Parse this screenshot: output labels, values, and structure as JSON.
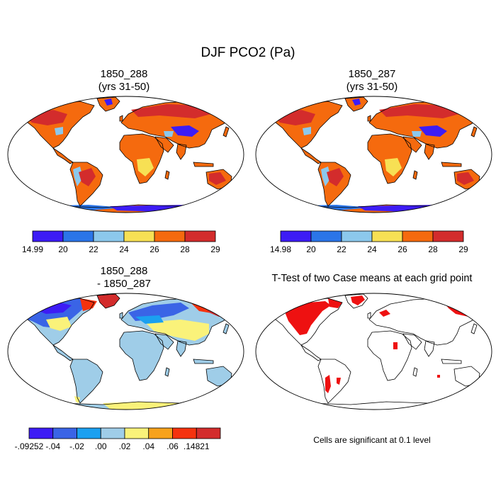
{
  "title": "DJF PCO2 (Pa)",
  "panels": [
    {
      "id": "p1",
      "title_line1": "1850_288",
      "title_line2": "(yrs 31-50)"
    },
    {
      "id": "p2",
      "title_line1": "1850_287",
      "title_line2": "(yrs 31-50)"
    },
    {
      "id": "p3",
      "title_line1": "1850_288",
      "title_line2": "- 1850_287"
    },
    {
      "id": "p4",
      "title_line1": "T-Test of two Case means at each grid point",
      "title_line2": ""
    }
  ],
  "note": "Cells are significant at 0.1 level",
  "colors": {
    "abs_scale": [
      "#3d1cf5",
      "#2b75e8",
      "#8cc8ec",
      "#f7e054",
      "#f56a0e",
      "#d32c2c"
    ],
    "diff_scale": [
      "#3d1cf5",
      "#3a64e6",
      "#1ba0f0",
      "#9fcde8",
      "#faf27a",
      "#f7a21c",
      "#f5320e",
      "#d32c2c"
    ],
    "significant": "#ee1111",
    "outline": "#000000"
  },
  "chart_data": [
    {
      "type": "heatmap",
      "title": "1850_288 (yrs 31-50)",
      "colorbar_labels": [
        "14.99",
        "20",
        "22",
        "24",
        "26",
        "28",
        "29"
      ],
      "colorbar_min": 14.99,
      "colorbar_max": 29,
      "levels": [
        20,
        22,
        24,
        26,
        28
      ]
    },
    {
      "type": "heatmap",
      "title": "1850_287 (yrs 31-50)",
      "colorbar_labels": [
        "14.98",
        "20",
        "22",
        "24",
        "26",
        "28",
        "29"
      ],
      "colorbar_min": 14.98,
      "colorbar_max": 29,
      "levels": [
        20,
        22,
        24,
        26,
        28
      ]
    },
    {
      "type": "heatmap",
      "title": "1850_288 - 1850_287",
      "colorbar_labels": [
        "-.09252",
        "-.04",
        "-.02",
        ".00",
        ".02",
        ".04",
        ".06",
        ".14821"
      ],
      "colorbar_min": -0.09252,
      "colorbar_max": 0.14821,
      "levels": [
        -0.04,
        -0.02,
        0.0,
        0.02,
        0.04,
        0.06
      ]
    },
    {
      "type": "heatmap",
      "title": "T-Test of two Case means at each grid point",
      "note": "Cells are significant at 0.1 level"
    }
  ]
}
